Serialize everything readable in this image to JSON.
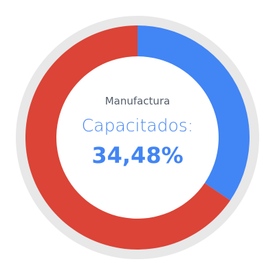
{
  "widget": {
    "subtitle": "Manufactura",
    "label": "Capacitados:",
    "value_text": "34,48%"
  },
  "chart_data": {
    "type": "pie",
    "style": "donut",
    "series": [
      {
        "name": "",
        "value": 34.48,
        "color": "#4285f4"
      },
      {
        "name": "",
        "value": 65.52,
        "color": "#db4437"
      }
    ],
    "track_color": "#e8e8e8"
  }
}
